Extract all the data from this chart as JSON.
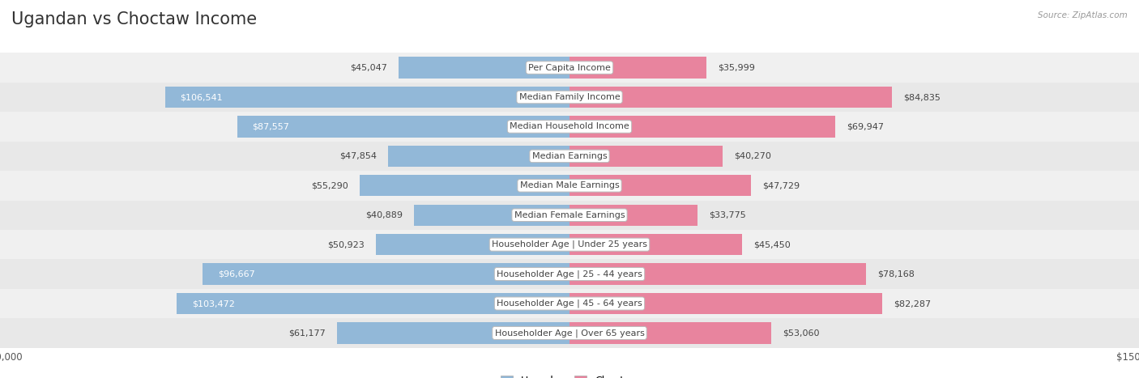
{
  "title": "Ugandan vs Choctaw Income",
  "source_text": "Source: ZipAtlas.com",
  "categories": [
    "Per Capita Income",
    "Median Family Income",
    "Median Household Income",
    "Median Earnings",
    "Median Male Earnings",
    "Median Female Earnings",
    "Householder Age | Under 25 years",
    "Householder Age | 25 - 44 years",
    "Householder Age | 45 - 64 years",
    "Householder Age | Over 65 years"
  ],
  "ugandan_values": [
    45047,
    106541,
    87557,
    47854,
    55290,
    40889,
    50923,
    96667,
    103472,
    61177
  ],
  "choctaw_values": [
    35999,
    84835,
    69947,
    40270,
    47729,
    33775,
    45450,
    78168,
    82287,
    53060
  ],
  "ugandan_color": "#92b8d8",
  "choctaw_color": "#e8849e",
  "inside_threshold": 75000,
  "max_value": 150000,
  "row_colors": [
    "#f0f0f0",
    "#e8e8e8"
  ],
  "background_color": "#ffffff",
  "legend_ugandan": "Ugandan",
  "legend_choctaw": "Choctaw",
  "title_fontsize": 15,
  "label_fontsize": 8,
  "category_fontsize": 8,
  "axis_fontsize": 8.5
}
